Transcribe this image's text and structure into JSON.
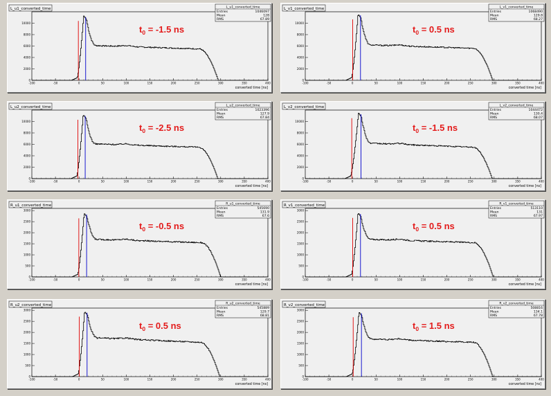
{
  "layout_note": "",
  "chart_data": [
    {
      "type": "line",
      "title": "L_u1_converted_time",
      "xlabel": "converted time [ns]",
      "xlim": [
        -100,
        400
      ],
      "ylim": [
        0,
        12000
      ],
      "x_ticks": [
        -100,
        -50,
        0,
        50,
        100,
        150,
        200,
        250,
        300,
        350,
        400
      ],
      "y_ticks": [
        0,
        2000,
        4000,
        6000,
        8000,
        10000
      ],
      "stats": {
        "name": "L_u1_converted_time",
        "entries": "1046097",
        "mean": "128",
        "rms": "67.89"
      },
      "t0_label": "t0 = -1.5 ns",
      "t0_ns": -1.5,
      "red_line_x": -1.5,
      "blue_line_x": 14,
      "shape": {
        "peak": 11300,
        "plateau_start": 5900,
        "plateau_end": 5500,
        "rise_start": -4,
        "peak_x": 10,
        "fall_end": 295
      }
    },
    {
      "type": "line",
      "title": "L_v1_converted_time",
      "xlabel": "converted time [ns]",
      "xlim": [
        -100,
        400
      ],
      "ylim": [
        0,
        12000
      ],
      "x_ticks": [
        -100,
        -50,
        0,
        50,
        100,
        150,
        200,
        250,
        300,
        350,
        400
      ],
      "y_ticks": [
        0,
        2000,
        4000,
        6000,
        8000,
        10000
      ],
      "stats": {
        "name": "L_v1_converted_time",
        "entries": "1068490",
        "mean": "129.8",
        "rms": "68.27"
      },
      "t0_label": "t0 = 0.5 ns",
      "t0_ns": 0.5,
      "red_line_x": 0.5,
      "blue_line_x": 17,
      "shape": {
        "peak": 11600,
        "plateau_start": 6000,
        "plateau_end": 5600,
        "rise_start": -2,
        "peak_x": 12,
        "fall_end": 297
      }
    },
    {
      "type": "line",
      "title": "L_u2_converted_time",
      "xlabel": "converted time [ns]",
      "xlim": [
        -100,
        400
      ],
      "ylim": [
        0,
        12000
      ],
      "x_ticks": [
        -100,
        -50,
        0,
        50,
        100,
        150,
        200,
        250,
        300,
        350,
        400
      ],
      "y_ticks": [
        0,
        2000,
        4000,
        6000,
        8000,
        10000
      ],
      "stats": {
        "name": "L_u2_converted_time",
        "entries": "1023396",
        "mean": "127.9",
        "rms": "67.84"
      },
      "t0_label": "t0 = -2.5 ns",
      "t0_ns": -2.5,
      "red_line_x": -2.5,
      "blue_line_x": 13,
      "shape": {
        "peak": 11200,
        "plateau_start": 5900,
        "plateau_end": 5500,
        "rise_start": -5,
        "peak_x": 9,
        "fall_end": 294
      }
    },
    {
      "type": "line",
      "title": "L_v2_converted_time",
      "xlabel": "converted time [ns]",
      "xlim": [
        -100,
        400
      ],
      "ylim": [
        0,
        12000
      ],
      "x_ticks": [
        -100,
        -50,
        0,
        50,
        100,
        150,
        200,
        250,
        300,
        350,
        400
      ],
      "y_ticks": [
        0,
        2000,
        4000,
        6000,
        8000,
        10000
      ],
      "stats": {
        "name": "L_v2_converted_time",
        "entries": "1044472",
        "mean": "130.4",
        "rms": "68.07"
      },
      "t0_label": "t0 = -1.5 ns",
      "t0_ns": -1.5,
      "red_line_x": -1.5,
      "blue_line_x": 18,
      "shape": {
        "peak": 11500,
        "plateau_start": 6000,
        "plateau_end": 5500,
        "rise_start": -4,
        "peak_x": 13,
        "fall_end": 296
      }
    },
    {
      "type": "line",
      "title": "R_u1_converted_time",
      "xlabel": "converted time [ns]",
      "xlim": [
        -100,
        400
      ],
      "ylim": [
        0,
        3100
      ],
      "x_ticks": [
        -100,
        -50,
        0,
        50,
        100,
        150,
        200,
        250,
        300,
        350,
        400
      ],
      "y_ticks": [
        0,
        500,
        1000,
        1500,
        2000,
        2500,
        3000
      ],
      "stats": {
        "name": "R_u1_converted_time",
        "entries": "545690",
        "mean": "131.9",
        "rms": "67.6"
      },
      "t0_label": "t0 = -0.5 ns",
      "t0_ns": -0.5,
      "red_line_x": -0.5,
      "blue_line_x": 16,
      "shape": {
        "peak": 2880,
        "plateau_start": 1650,
        "plateau_end": 1550,
        "rise_start": -3,
        "peak_x": 11,
        "fall_end": 300
      }
    },
    {
      "type": "line",
      "title": "R_v1_converted_time",
      "xlabel": "converted time [ns]",
      "xlim": [
        -100,
        400
      ],
      "ylim": [
        0,
        3100
      ],
      "x_ticks": [
        -100,
        -50,
        0,
        50,
        100,
        150,
        200,
        250,
        300,
        350,
        400
      ],
      "y_ticks": [
        0,
        500,
        1000,
        1500,
        2000,
        2500,
        3000
      ],
      "stats": {
        "name": "R_v1_converted_time",
        "entries": "513110",
        "mean": "131",
        "rms": "67.97"
      },
      "t0_label": "t0 = 0.5 ns",
      "t0_ns": 0.5,
      "red_line_x": 0.5,
      "blue_line_x": 17,
      "shape": {
        "peak": 2900,
        "plateau_start": 1650,
        "plateau_end": 1550,
        "rise_start": -2,
        "peak_x": 12,
        "fall_end": 298
      }
    },
    {
      "type": "line",
      "title": "R_u2_converted_time",
      "xlabel": "converted time [ns]",
      "xlim": [
        -100,
        400
      ],
      "ylim": [
        0,
        3100
      ],
      "x_ticks": [
        -100,
        -50,
        0,
        50,
        100,
        150,
        200,
        250,
        300,
        350,
        400
      ],
      "y_ticks": [
        0,
        500,
        1000,
        1500,
        2000,
        2500,
        3000
      ],
      "stats": {
        "name": "R_u2_converted_time",
        "entries": "545889",
        "mean": "129.7",
        "rms": "68.81"
      },
      "t0_label": "t0 = 0.5 ns",
      "t0_ns": 0.5,
      "red_line_x": 0.5,
      "blue_line_x": 17,
      "shape": {
        "peak": 2950,
        "plateau_start": 1700,
        "plateau_end": 1550,
        "rise_start": -2,
        "peak_x": 12,
        "fall_end": 298
      }
    },
    {
      "type": "line",
      "title": "R_v2_converted_time",
      "xlabel": "converted time [ns]",
      "xlim": [
        -100,
        400
      ],
      "ylim": [
        0,
        3100
      ],
      "x_ticks": [
        -100,
        -50,
        0,
        50,
        100,
        150,
        200,
        250,
        300,
        350,
        400
      ],
      "y_ticks": [
        0,
        500,
        1000,
        1500,
        2000,
        2500,
        3000
      ],
      "stats": {
        "name": "R_v2_converted_time",
        "entries": "508816",
        "mean": "134.1",
        "rms": "67.78"
      },
      "t0_label": "t0 = 1.5 ns",
      "t0_ns": 1.5,
      "red_line_x": 1.5,
      "blue_line_x": 19,
      "shape": {
        "peak": 2920,
        "plateau_start": 1650,
        "plateau_end": 1550,
        "rise_start": -1,
        "peak_x": 14,
        "fall_end": 297
      }
    }
  ],
  "stat_labels": {
    "entries": "Entries",
    "mean": "Mean",
    "rms": "RMS"
  },
  "t0_symbol": "t",
  "t0_subscript": "0",
  "colors": {
    "histogram": "#000000",
    "red_line": "#e00000",
    "blue_line": "#0000cc",
    "t0_text": "#e31b1b",
    "pad_bg": "#f0f0f0",
    "canvas_bg": "#d4d0c8"
  }
}
